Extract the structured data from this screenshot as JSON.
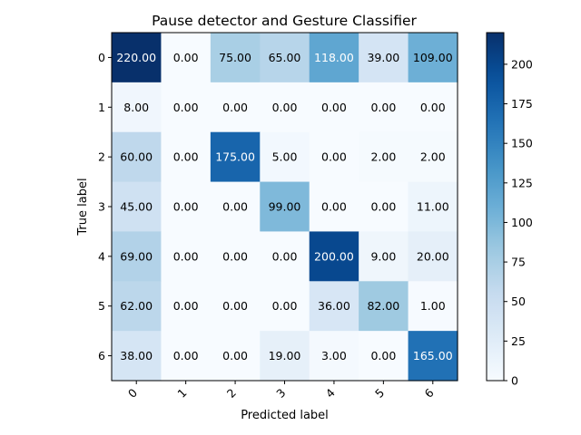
{
  "chart_data": {
    "type": "heatmap",
    "title": "Pause detector and Gesture Classifier",
    "xlabel": "Predicted label",
    "ylabel": "True label",
    "x_tick_labels": [
      "0",
      "1",
      "2",
      "3",
      "4",
      "5",
      "6"
    ],
    "y_tick_labels": [
      "0",
      "1",
      "2",
      "3",
      "4",
      "5",
      "6"
    ],
    "matrix": [
      [
        220,
        0,
        75,
        65,
        118,
        39,
        109
      ],
      [
        8,
        0,
        0,
        0,
        0,
        0,
        0
      ],
      [
        60,
        0,
        175,
        5,
        0,
        2,
        2
      ],
      [
        45,
        0,
        0,
        99,
        0,
        0,
        11
      ],
      [
        69,
        0,
        0,
        0,
        200,
        9,
        20
      ],
      [
        62,
        0,
        0,
        0,
        36,
        82,
        1
      ],
      [
        38,
        0,
        0,
        19,
        3,
        0,
        165
      ]
    ],
    "cell_labels": [
      [
        "220.00",
        "0.00",
        "75.00",
        "65.00",
        "118.00",
        "39.00",
        "109.00"
      ],
      [
        "8.00",
        "0.00",
        "0.00",
        "0.00",
        "0.00",
        "0.00",
        "0.00"
      ],
      [
        "60.00",
        "0.00",
        "175.00",
        "5.00",
        "0.00",
        "2.00",
        "2.00"
      ],
      [
        "45.00",
        "0.00",
        "0.00",
        "99.00",
        "0.00",
        "0.00",
        "11.00"
      ],
      [
        "69.00",
        "0.00",
        "0.00",
        "0.00",
        "200.00",
        "9.00",
        "20.00"
      ],
      [
        "62.00",
        "0.00",
        "0.00",
        "0.00",
        "36.00",
        "82.00",
        "1.00"
      ],
      [
        "38.00",
        "0.00",
        "0.00",
        "19.00",
        "3.00",
        "0.00",
        "165.00"
      ]
    ],
    "colormap": "Blues",
    "value_range": [
      0,
      220
    ],
    "colorbar_ticks": [
      0,
      25,
      50,
      75,
      100,
      125,
      150,
      175,
      200
    ],
    "colorbar_tick_labels": [
      "0",
      "25",
      "50",
      "75",
      "100",
      "125",
      "150",
      "175",
      "200"
    ],
    "x_tick_rotation_deg": 45,
    "text_color_dark": "#000000",
    "text_color_light": "#ffffff",
    "grid": false
  }
}
